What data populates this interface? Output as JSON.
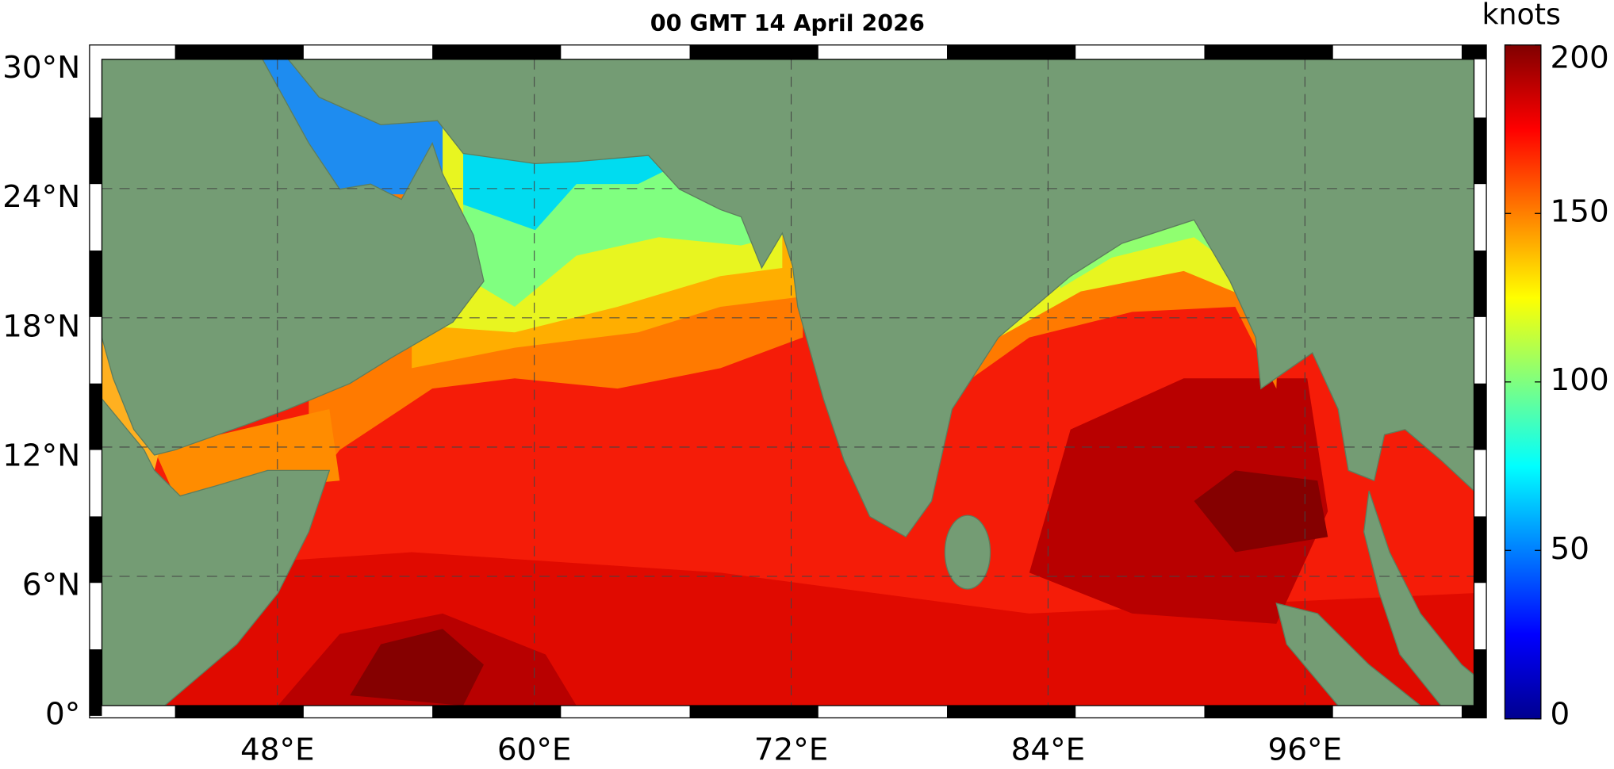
{
  "title": "00 GMT 14 April 2026",
  "colorbar": {
    "label": "knots",
    "lim": [
      0,
      200
    ],
    "ticks": [
      0,
      50,
      100,
      150,
      200
    ]
  },
  "lon_ticks": [
    {
      "value": 48,
      "label": "48°E"
    },
    {
      "value": 60,
      "label": "60°E"
    },
    {
      "value": 72,
      "label": "72°E"
    },
    {
      "value": 84,
      "label": "84°E"
    },
    {
      "value": 96,
      "label": "96°E"
    }
  ],
  "lat_ticks": [
    {
      "value": 0,
      "label": "0°"
    },
    {
      "value": 6,
      "label": "6°N"
    },
    {
      "value": 12,
      "label": "12°N"
    },
    {
      "value": 18,
      "label": "18°N"
    },
    {
      "value": 24,
      "label": "24°N"
    },
    {
      "value": 30,
      "label": "30°N"
    }
  ],
  "lonlim": [
    39.8,
    103.9
  ],
  "latlim": [
    0,
    30
  ]
}
